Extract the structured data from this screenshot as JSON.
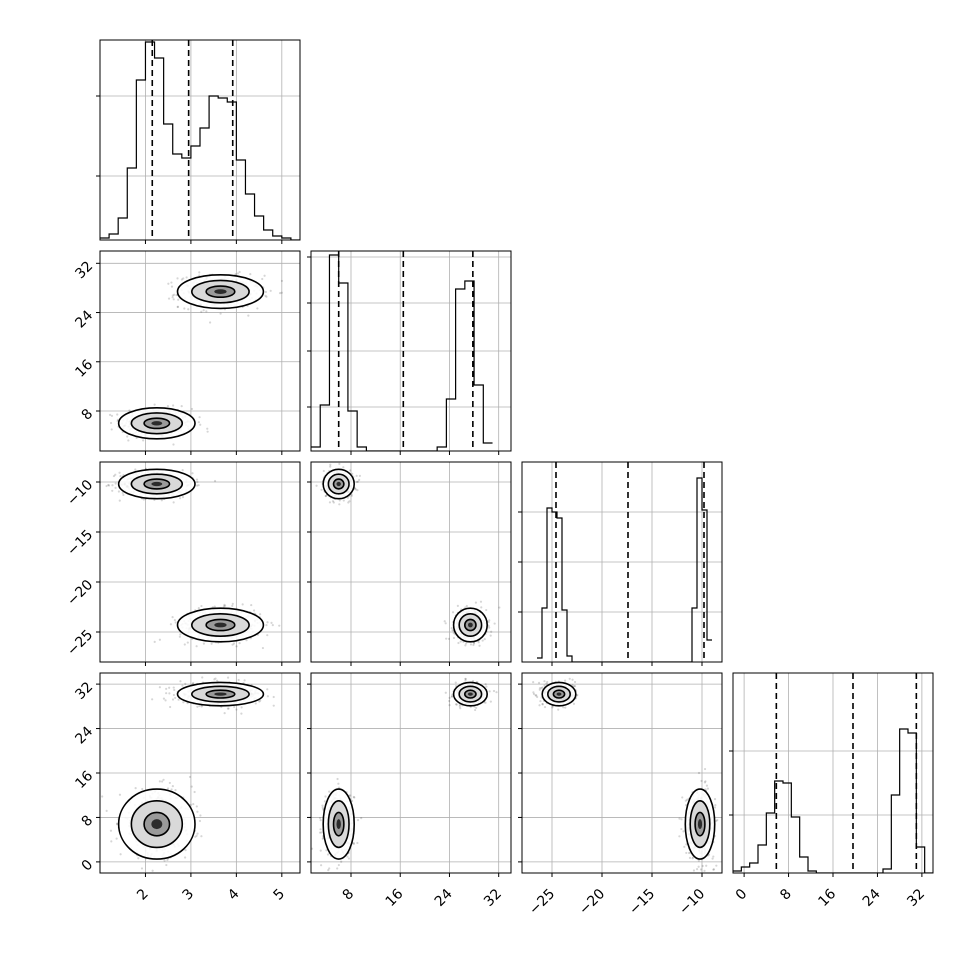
{
  "chart_data": {
    "type": "corner",
    "title": "",
    "grid": true,
    "n_params": 4,
    "parameters": [
      {
        "index": 0,
        "range": [
          1.0,
          5.4
        ],
        "ticks": [
          2,
          3,
          4,
          5
        ],
        "tick_labels": [
          "2",
          "3",
          "4",
          "5"
        ],
        "quantiles": [
          2.15,
          2.95,
          3.92
        ],
        "hist_ylim": [
          0,
          1.0
        ],
        "hist_grid": [
          0.32,
          0.72
        ],
        "histogram": {
          "edges": [
            1.0,
            1.2,
            1.4,
            1.6,
            1.8,
            2.0,
            2.2,
            2.4,
            2.6,
            2.8,
            3.0,
            3.2,
            3.4,
            3.6,
            3.8,
            4.0,
            4.2,
            4.4,
            4.6,
            4.8,
            5.0,
            5.2,
            5.4
          ],
          "counts": [
            0.01,
            0.03,
            0.11,
            0.36,
            0.8,
            0.99,
            0.91,
            0.58,
            0.43,
            0.41,
            0.47,
            0.56,
            0.72,
            0.71,
            0.69,
            0.4,
            0.23,
            0.12,
            0.05,
            0.02,
            0.01,
            0.0
          ]
        }
      },
      {
        "index": 1,
        "range": [
          1.5,
          34.0
        ],
        "ticks": [
          8,
          16,
          24,
          32
        ],
        "tick_labels": [
          "8",
          "16",
          "24",
          "32"
        ],
        "quantiles": [
          6.0,
          16.5,
          27.8
        ],
        "hist_ylim": [
          0,
          1.0
        ],
        "hist_grid": [
          0.22,
          0.5,
          0.74,
          0.97
        ],
        "histogram": {
          "edges": [
            1.5,
            3.0,
            4.5,
            6.0,
            7.5,
            9.0,
            10.5,
            22.0,
            23.5,
            25.0,
            26.5,
            28.0,
            29.5,
            31.0
          ],
          "counts": [
            0.02,
            0.23,
            0.98,
            0.84,
            0.2,
            0.02,
            0.0,
            0.02,
            0.26,
            0.81,
            0.85,
            0.33,
            0.04
          ]
        }
      },
      {
        "index": 2,
        "range": [
          -28.0,
          -8.0
        ],
        "ticks": [
          -25,
          -20,
          -15,
          -10
        ],
        "tick_labels": [
          "−25",
          "−20",
          "−15",
          "−10"
        ],
        "quantiles": [
          -24.6,
          -17.4,
          -9.8
        ],
        "hist_ylim": [
          0,
          1.0
        ],
        "hist_grid": [
          0.25,
          0.5,
          0.75
        ],
        "histogram": {
          "edges": [
            -26.5,
            -26.0,
            -25.5,
            -25.0,
            -24.5,
            -24.0,
            -23.5,
            -23.0,
            -22.5,
            -11.5,
            -11.0,
            -10.5,
            -10.0,
            -9.5,
            -9.0
          ],
          "counts": [
            0.02,
            0.27,
            0.77,
            0.75,
            0.72,
            0.26,
            0.03,
            0.0,
            0.0,
            0.0,
            0.27,
            0.92,
            0.76,
            0.11
          ]
        }
      },
      {
        "index": 3,
        "range": [
          -2.0,
          34.0
        ],
        "ticks": [
          0,
          8,
          16,
          24,
          32
        ],
        "tick_labels": [
          "0",
          "8",
          "16",
          "24",
          "32"
        ],
        "quantiles": [
          5.8,
          19.6,
          31.0
        ],
        "hist_ylim": [
          0,
          1.0
        ],
        "hist_grid": [
          0.29,
          0.61
        ],
        "histogram": {
          "edges": [
            -2.0,
            -0.5,
            1.0,
            2.5,
            4.0,
            5.5,
            7.0,
            8.5,
            10.0,
            11.5,
            13.0,
            14.5,
            16.0,
            17.5,
            19.0,
            20.5,
            22.0,
            23.5,
            25.0,
            26.5,
            28.0,
            29.5,
            31.0,
            32.5,
            34.0
          ],
          "counts": [
            0.01,
            0.03,
            0.05,
            0.14,
            0.3,
            0.46,
            0.45,
            0.28,
            0.08,
            0.01,
            0.0,
            0.0,
            0.0,
            0.0,
            0.0,
            0.0,
            0.0,
            0.0,
            0.02,
            0.39,
            0.72,
            0.7,
            0.13,
            0.0
          ]
        }
      }
    ],
    "modes": [
      {
        "weight": 0.5,
        "mean": [
          2.25,
          6.0,
          -10.2,
          6.8
        ],
        "sd": [
          0.4,
          1.2,
          0.7,
          3.0
        ]
      },
      {
        "weight": 0.5,
        "mean": [
          3.65,
          27.4,
          -24.3,
          30.2
        ],
        "sd": [
          0.45,
          1.3,
          0.8,
          1.0
        ]
      }
    ]
  }
}
